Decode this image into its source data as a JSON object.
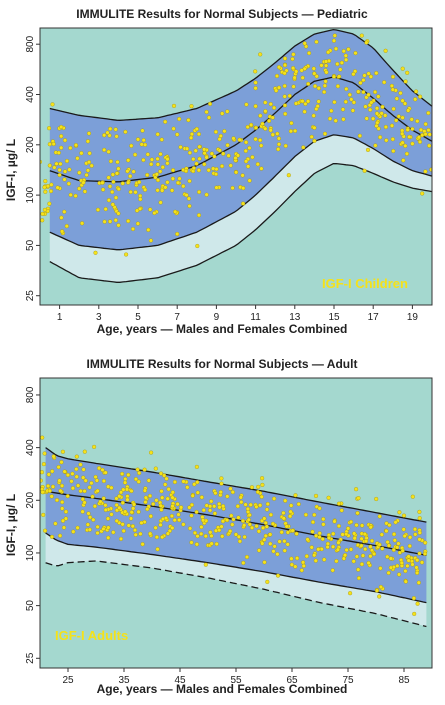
{
  "chart_data": [
    {
      "type": "scatter",
      "title": "IMMULITE Results for Normal Subjects — Pediatric",
      "xlabel": "Age, years — Males and Females Combined",
      "ylabel": "IGF-I, µg/ L",
      "xlim": [
        0,
        20
      ],
      "ylim": [
        22,
        1000
      ],
      "yscale": "log",
      "x_ticks": [
        1,
        3,
        5,
        7,
        9,
        11,
        13,
        15,
        17,
        19
      ],
      "y_ticks": [
        25,
        50,
        100,
        200,
        400,
        800
      ],
      "annotation": "IGF-I Children",
      "colors": {
        "background": "#a4d8cf",
        "band_outer": "#7c9fd8",
        "band_inner": "#cfe8ea",
        "points": "#f5e21a",
        "text_annotation": "#f5e21a"
      },
      "curves": [
        {
          "name": "upper",
          "x": [
            0.5,
            2,
            4,
            6,
            8,
            10,
            11,
            12,
            13,
            14,
            15,
            16,
            17,
            18,
            19,
            20
          ],
          "y": [
            330,
            300,
            280,
            290,
            330,
            420,
            500,
            620,
            780,
            920,
            980,
            920,
            760,
            560,
            420,
            340
          ]
        },
        {
          "name": "median",
          "x": [
            0.5,
            2,
            4,
            6,
            8,
            10,
            11,
            12,
            13,
            14,
            15,
            16,
            17,
            18,
            19,
            20
          ],
          "y": [
            140,
            122,
            120,
            128,
            150,
            200,
            245,
            310,
            400,
            480,
            510,
            470,
            380,
            300,
            245,
            210
          ]
        },
        {
          "name": "lower_inner",
          "x": [
            0.5,
            2,
            4,
            6,
            8,
            10,
            11,
            12,
            13,
            14,
            15,
            16,
            17,
            18,
            19,
            20
          ],
          "y": [
            60,
            50,
            47,
            50,
            60,
            80,
            100,
            130,
            170,
            210,
            230,
            220,
            190,
            160,
            140,
            130
          ]
        },
        {
          "name": "lower_outer",
          "x": [
            0.5,
            2,
            4,
            6,
            8,
            10,
            11,
            12,
            13,
            14,
            15,
            16,
            17,
            18,
            19,
            20
          ],
          "y": [
            40,
            32,
            30,
            32,
            38,
            50,
            62,
            80,
            105,
            135,
            155,
            150,
            135,
            120,
            110,
            105
          ]
        }
      ],
      "scatter": {
        "n": 520,
        "seed": 7,
        "x_range": [
          0.1,
          20
        ],
        "spread_log10": 0.17,
        "clip": [
          35,
          900
        ]
      }
    },
    {
      "type": "scatter",
      "title": "IMMULITE Results for Normal Subjects — Adult",
      "xlabel": "Age, years — Males and Females Combined",
      "ylabel": "IGF-I, µg/ L",
      "xlim": [
        20,
        90
      ],
      "ylim": [
        22,
        1000
      ],
      "yscale": "log",
      "x_ticks": [
        25,
        35,
        45,
        55,
        65,
        75,
        85
      ],
      "y_ticks": [
        25,
        50,
        100,
        200,
        400,
        800
      ],
      "annotation": "IGF-I Adults",
      "colors": {
        "background": "#a4d8cf",
        "band_outer": "#7c9fd8",
        "band_inner": "#cfe8ea",
        "points": "#f5e21a",
        "text_annotation": "#f5e21a"
      },
      "curves": [
        {
          "name": "upper",
          "x": [
            21,
            23,
            25,
            30,
            40,
            50,
            60,
            70,
            80,
            89
          ],
          "y": [
            400,
            360,
            345,
            325,
            290,
            255,
            225,
            195,
            170,
            150
          ]
        },
        {
          "name": "median",
          "x": [
            21,
            25,
            30,
            40,
            50,
            60,
            70,
            80,
            89
          ],
          "y": [
            225,
            215,
            205,
            185,
            165,
            145,
            125,
            110,
            97
          ]
        },
        {
          "name": "lower_inner",
          "x": [
            21,
            23,
            25,
            30,
            40,
            50,
            60,
            70,
            80,
            89
          ],
          "y": [
            130,
            118,
            112,
            108,
            98,
            88,
            78,
            68,
            60,
            52
          ]
        },
        {
          "name": "lower_outer_dashed",
          "x": [
            21,
            23,
            25,
            30,
            40,
            50,
            60,
            70,
            80,
            89
          ],
          "y": [
            88,
            84,
            88,
            90,
            82,
            72,
            62,
            52,
            45,
            38
          ]
        }
      ],
      "scatter": {
        "n": 560,
        "seed": 13,
        "x_range": [
          20,
          89
        ],
        "spread_log10": 0.12,
        "clip": [
          28,
          600
        ]
      }
    }
  ]
}
